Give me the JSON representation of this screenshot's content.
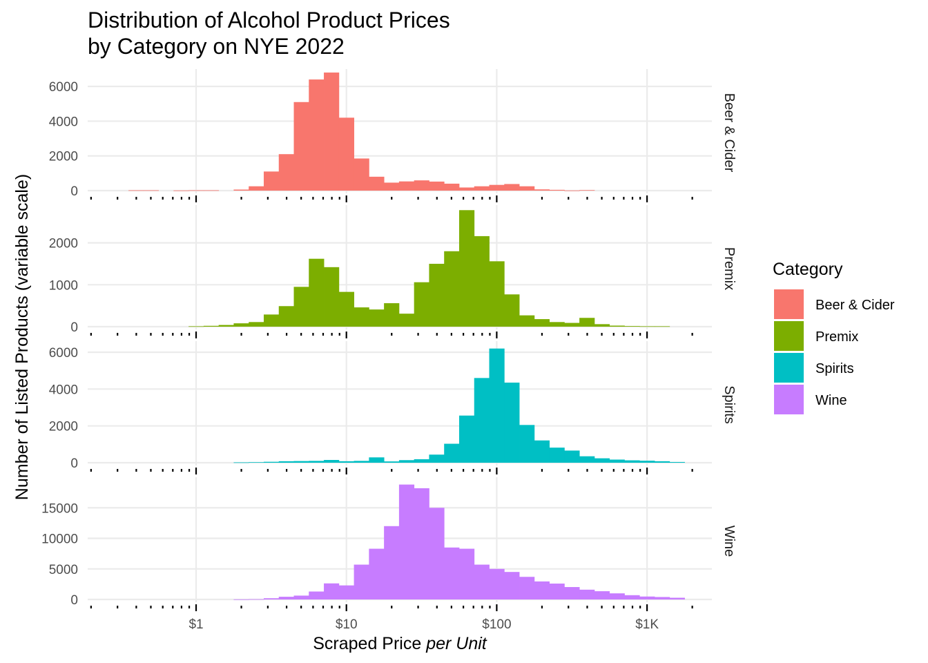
{
  "chart_data": {
    "type": "histogram",
    "title": [
      "Distribution of Alcohol Product Prices",
      "by Category on NYE 2022"
    ],
    "xlabel": {
      "plain": "Scraped Price ",
      "italic": "per Unit"
    },
    "ylabel": "Number of Listed Products (variable scale)",
    "x_scale": "log10",
    "xlim": [
      0.19,
      2700
    ],
    "x_ticks": [
      1,
      10,
      100,
      1000
    ],
    "x_tick_labels": [
      "$1",
      "$10",
      "$100",
      "$1K"
    ],
    "bin_start_log10": -0.55,
    "bin_width_log10": 0.1,
    "legend": {
      "title": "Category",
      "position": "right"
    },
    "facets": [
      {
        "name": "Beer & Cider",
        "color": "#F8766D",
        "ylim": [
          0,
          7000
        ],
        "y_ticks": [
          0,
          2000,
          4000,
          6000
        ],
        "counts": [
          0,
          20,
          20,
          0,
          10,
          20,
          20,
          0,
          60,
          250,
          1100,
          2100,
          5100,
          6400,
          6800,
          4200,
          1850,
          800,
          460,
          530,
          590,
          520,
          400,
          180,
          250,
          330,
          380,
          250,
          70,
          45,
          10,
          30,
          0,
          0,
          0,
          0,
          0,
          0
        ]
      },
      {
        "name": "Premix",
        "color": "#7CAE00",
        "ylim": [
          0,
          2900
        ],
        "y_ticks": [
          0,
          1000,
          2000
        ],
        "counts": [
          0,
          0,
          0,
          0,
          0,
          10,
          20,
          40,
          80,
          110,
          290,
          490,
          950,
          1620,
          1420,
          830,
          460,
          410,
          560,
          310,
          1060,
          1500,
          1800,
          2780,
          2160,
          1560,
          770,
          270,
          180,
          110,
          90,
          210,
          60,
          25,
          15,
          10,
          10,
          0
        ]
      },
      {
        "name": "Spirits",
        "color": "#00BFC4",
        "ylim": [
          0,
          6600
        ],
        "y_ticks": [
          0,
          2000,
          4000,
          6000
        ],
        "counts": [
          0,
          0,
          0,
          0,
          0,
          0,
          0,
          0,
          20,
          30,
          50,
          80,
          90,
          100,
          150,
          80,
          100,
          290,
          70,
          140,
          190,
          440,
          1030,
          2560,
          4600,
          6200,
          4350,
          2050,
          1210,
          820,
          660,
          350,
          240,
          170,
          130,
          110,
          80,
          40
        ]
      },
      {
        "name": "Wine",
        "color": "#C77CFF",
        "ylim": [
          0,
          20000
        ],
        "y_ticks": [
          0,
          5000,
          10000,
          15000
        ],
        "counts": [
          0,
          0,
          0,
          0,
          0,
          0,
          0,
          0,
          20,
          50,
          200,
          440,
          630,
          1300,
          2630,
          2300,
          5700,
          8300,
          12000,
          18800,
          18200,
          15000,
          8500,
          8300,
          5700,
          5000,
          4500,
          3700,
          2950,
          2600,
          2030,
          1600,
          1350,
          1000,
          700,
          480,
          400,
          280
        ]
      }
    ]
  }
}
